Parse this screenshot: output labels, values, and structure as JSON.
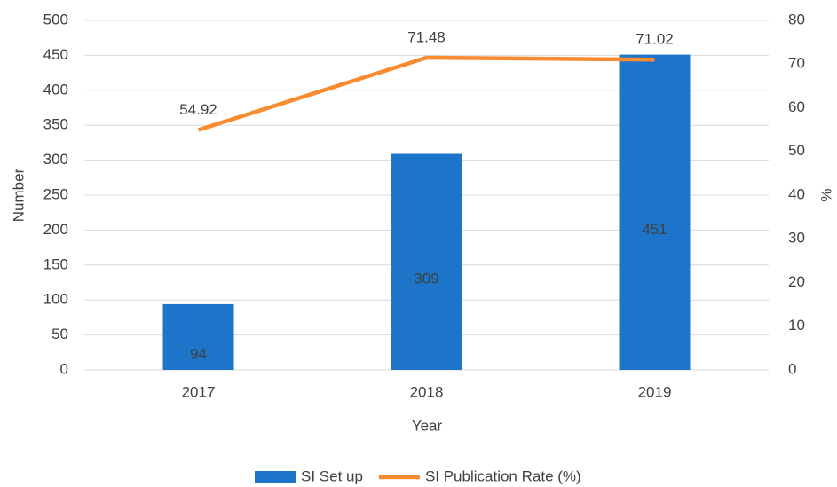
{
  "chart_data": {
    "type": "bar",
    "categories": [
      "2017",
      "2018",
      "2019"
    ],
    "series": [
      {
        "name": "SI Set up",
        "type": "bar",
        "color": "#1c75c8",
        "values": [
          94,
          309,
          451
        ]
      },
      {
        "name": "SI Publication Rate (%)",
        "type": "line",
        "axis": "y2",
        "color": "#f98b30",
        "values": [
          54.92,
          71.48,
          71.02
        ]
      }
    ],
    "xlabel": "Year",
    "ylabel": "Number",
    "y2label": "%",
    "ylim": [
      0,
      500
    ],
    "yticks": [
      0,
      50,
      100,
      150,
      200,
      250,
      300,
      350,
      400,
      450,
      500
    ],
    "y2lim": [
      0,
      80
    ],
    "y2ticks": [
      0,
      10,
      20,
      30,
      40,
      50,
      60,
      70,
      80
    ],
    "grid": true,
    "legend": "bottom"
  }
}
